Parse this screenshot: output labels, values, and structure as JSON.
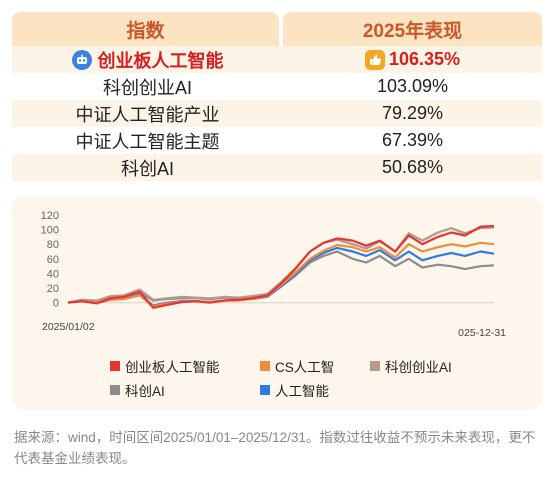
{
  "table": {
    "headers": [
      "指数",
      "2025年表现"
    ],
    "rows": [
      {
        "name": "创业板人工智能",
        "value": "106.35%",
        "highlight": true
      },
      {
        "name": "科创创业AI",
        "value": "103.09%",
        "highlight": false
      },
      {
        "name": "中证人工智能产业",
        "value": "79.29%",
        "highlight": false
      },
      {
        "name": "中证人工智能主题",
        "value": "67.39%",
        "highlight": false
      },
      {
        "name": "科创AI",
        "value": "50.68%",
        "highlight": false
      }
    ]
  },
  "icons": {
    "highlight_name": "robot-icon",
    "highlight_value": "thumbs-up-icon"
  },
  "chart_data": {
    "type": "line",
    "x_start_label": "2025/01/02",
    "x_end_label": "025-12-31",
    "ylim": [
      0,
      120
    ],
    "yticks": [
      "120",
      "100",
      "80",
      "60",
      "40",
      "20",
      "0"
    ],
    "x": [
      0,
      8,
      17,
      25,
      33,
      42,
      50,
      58,
      67,
      75,
      83,
      92,
      100,
      108,
      117,
      125,
      133,
      142,
      150,
      158,
      167,
      175,
      183,
      192,
      200,
      208,
      217,
      225,
      233,
      242,
      250
    ],
    "series": [
      {
        "name": "创业板人工智能",
        "color": "#e8352f",
        "values": [
          0,
          2,
          -1,
          6,
          8,
          15,
          -7,
          -3,
          1,
          2,
          0,
          3,
          4,
          6,
          10,
          26,
          45,
          70,
          82,
          88,
          85,
          78,
          85,
          70,
          92,
          80,
          90,
          96,
          92,
          104,
          105
        ]
      },
      {
        "name": "CS人工智",
        "color": "#f08c3c",
        "values": [
          0,
          3,
          1,
          4,
          5,
          10,
          -5,
          -1,
          1,
          2,
          1,
          3,
          3,
          5,
          9,
          24,
          40,
          60,
          71,
          79,
          76,
          70,
          76,
          62,
          80,
          70,
          76,
          80,
          77,
          82,
          80
        ]
      },
      {
        "name": "科创创业AI",
        "color": "#b8988a",
        "values": [
          0,
          4,
          3,
          9,
          10,
          18,
          4,
          6,
          8,
          7,
          6,
          8,
          7,
          9,
          12,
          28,
          46,
          70,
          82,
          86,
          80,
          74,
          84,
          70,
          95,
          85,
          96,
          102,
          95,
          102,
          103
        ]
      },
      {
        "name": "科创AI",
        "color": "#8c8c8c",
        "values": [
          0,
          4,
          2,
          6,
          8,
          14,
          3,
          5,
          6,
          6,
          5,
          7,
          6,
          8,
          10,
          22,
          36,
          55,
          64,
          70,
          60,
          55,
          64,
          50,
          60,
          48,
          52,
          50,
          46,
          50,
          51
        ]
      },
      {
        "name": "人工智能",
        "color": "#2f7be2",
        "values": [
          0,
          2,
          0,
          4,
          5,
          11,
          -4,
          0,
          2,
          2,
          1,
          3,
          4,
          5,
          8,
          22,
          38,
          58,
          68,
          75,
          70,
          64,
          72,
          58,
          70,
          58,
          64,
          68,
          64,
          70,
          67
        ]
      }
    ],
    "legend_rows": [
      [
        0,
        1,
        2
      ],
      [
        3,
        4
      ]
    ]
  },
  "note": "据来源：wind，时间区间2025/01/01–2025/12/31。指数过往收益不预示未来表现，更不代表基金业绩表现。"
}
